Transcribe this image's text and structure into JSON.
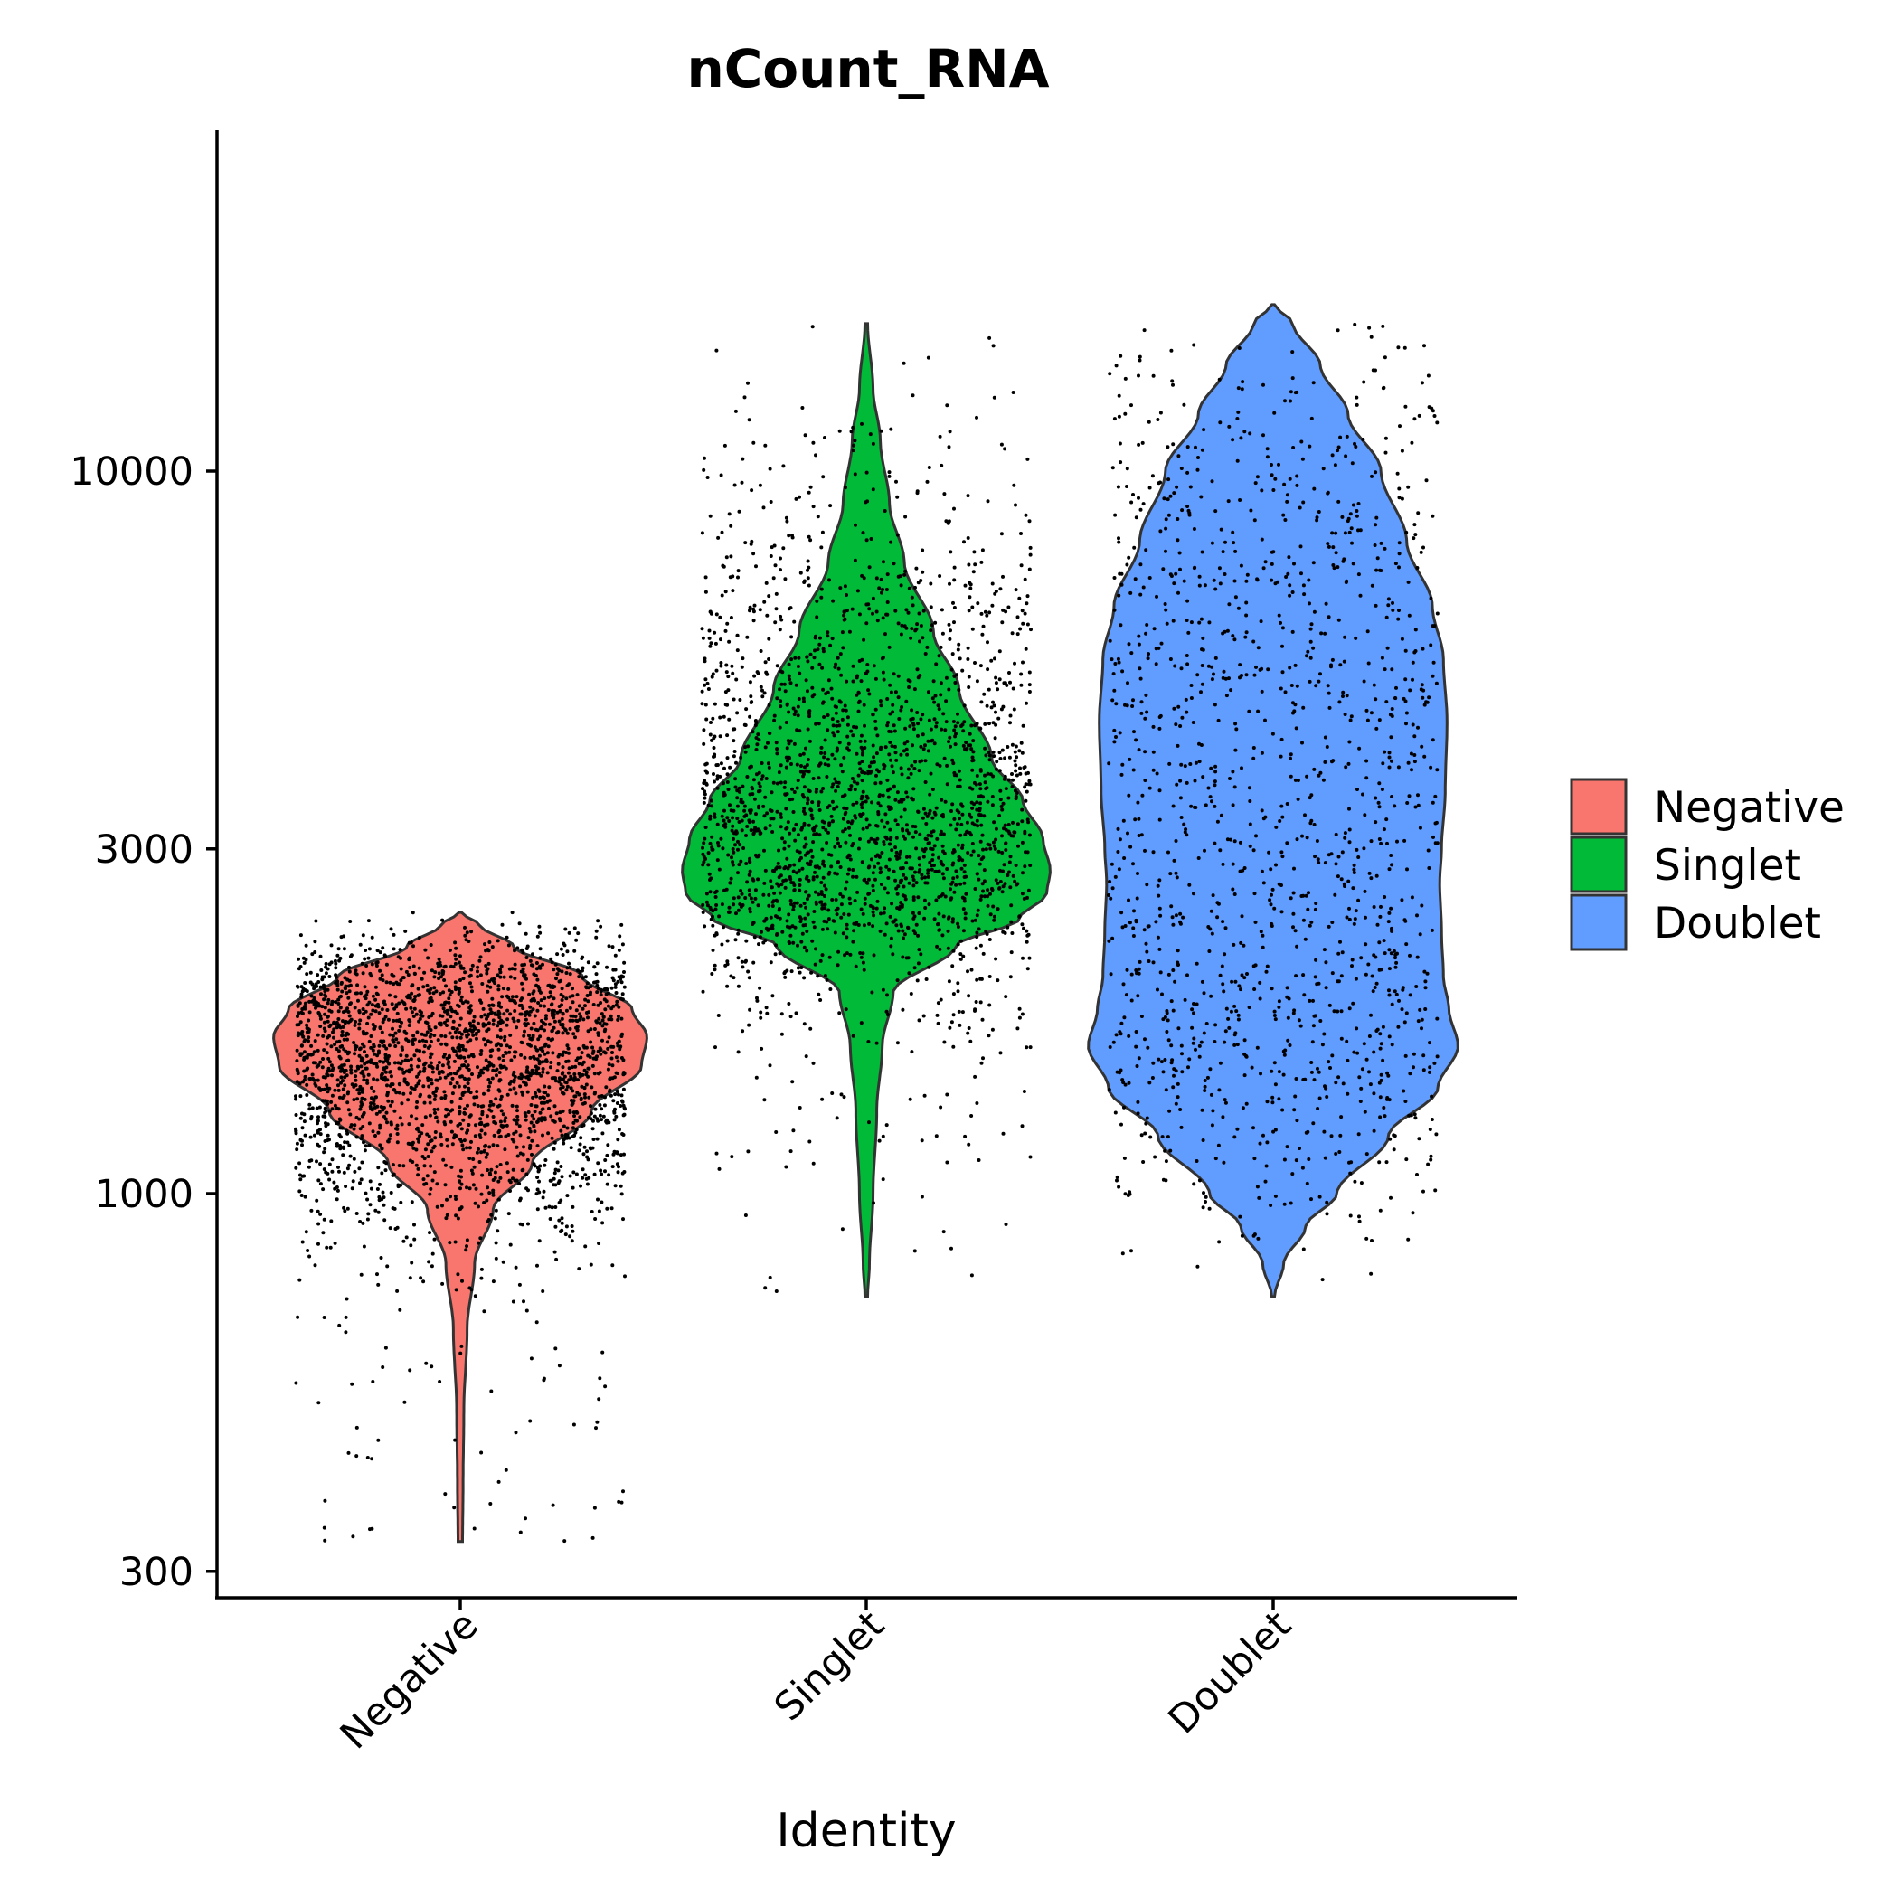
{
  "chart_data": {
    "type": "violin",
    "title": "nCount_RNA",
    "xlabel": "Identity",
    "ylabel": "",
    "y_scale": "log10",
    "ylim": [
      310,
      20000
    ],
    "y_ticks": [
      300,
      1000,
      3000,
      10000
    ],
    "y_tick_labels": [
      "300",
      "1000",
      "3000",
      "10000"
    ],
    "categories": [
      "Negative",
      "Singlet",
      "Doublet"
    ],
    "colors": {
      "Negative": "#F8766D",
      "Singlet": "#00BA38",
      "Doublet": "#619CFF"
    },
    "outline_color": "#333333",
    "legend": {
      "position": "right",
      "entries": [
        "Negative",
        "Singlet",
        "Doublet"
      ]
    },
    "violins": [
      {
        "name": "Negative",
        "min": 330,
        "max": 2450,
        "points_range": [
          330,
          2450
        ],
        "profile": [
          [
            330,
            0.005
          ],
          [
            400,
            0.008
          ],
          [
            500,
            0.012
          ],
          [
            650,
            0.03
          ],
          [
            800,
            0.07
          ],
          [
            950,
            0.17
          ],
          [
            1100,
            0.38
          ],
          [
            1300,
            0.7
          ],
          [
            1500,
            0.97
          ],
          [
            1650,
            1.0
          ],
          [
            1800,
            0.92
          ],
          [
            2000,
            0.65
          ],
          [
            2200,
            0.28
          ],
          [
            2350,
            0.1
          ],
          [
            2450,
            0.0
          ]
        ]
      },
      {
        "name": "Singlet",
        "min": 720,
        "max": 16000,
        "points_range": [
          720,
          16000
        ],
        "profile": [
          [
            720,
            0.0
          ],
          [
            800,
            0.01
          ],
          [
            1000,
            0.03
          ],
          [
            1300,
            0.05
          ],
          [
            1600,
            0.08
          ],
          [
            1900,
            0.14
          ],
          [
            2200,
            0.48
          ],
          [
            2400,
            0.83
          ],
          [
            2600,
            0.98
          ],
          [
            2800,
            1.0
          ],
          [
            3100,
            0.96
          ],
          [
            3500,
            0.85
          ],
          [
            4000,
            0.68
          ],
          [
            5000,
            0.5
          ],
          [
            6000,
            0.36
          ],
          [
            7500,
            0.2
          ],
          [
            9000,
            0.12
          ],
          [
            11000,
            0.07
          ],
          [
            13000,
            0.03
          ],
          [
            16000,
            0.0
          ]
        ]
      },
      {
        "name": "Doublet",
        "min": 720,
        "max": 17000,
        "points_range": [
          720,
          17000
        ],
        "profile": [
          [
            720,
            0.0
          ],
          [
            800,
            0.05
          ],
          [
            900,
            0.17
          ],
          [
            1000,
            0.34
          ],
          [
            1200,
            0.62
          ],
          [
            1400,
            0.89
          ],
          [
            1600,
            1.0
          ],
          [
            1800,
            0.95
          ],
          [
            2000,
            0.92
          ],
          [
            2300,
            0.91
          ],
          [
            2700,
            0.9
          ],
          [
            3000,
            0.91
          ],
          [
            3600,
            0.93
          ],
          [
            4500,
            0.94
          ],
          [
            5500,
            0.92
          ],
          [
            6500,
            0.86
          ],
          [
            8000,
            0.72
          ],
          [
            10000,
            0.58
          ],
          [
            12000,
            0.4
          ],
          [
            14000,
            0.25
          ],
          [
            16000,
            0.1
          ],
          [
            17000,
            0.0
          ]
        ]
      }
    ]
  }
}
